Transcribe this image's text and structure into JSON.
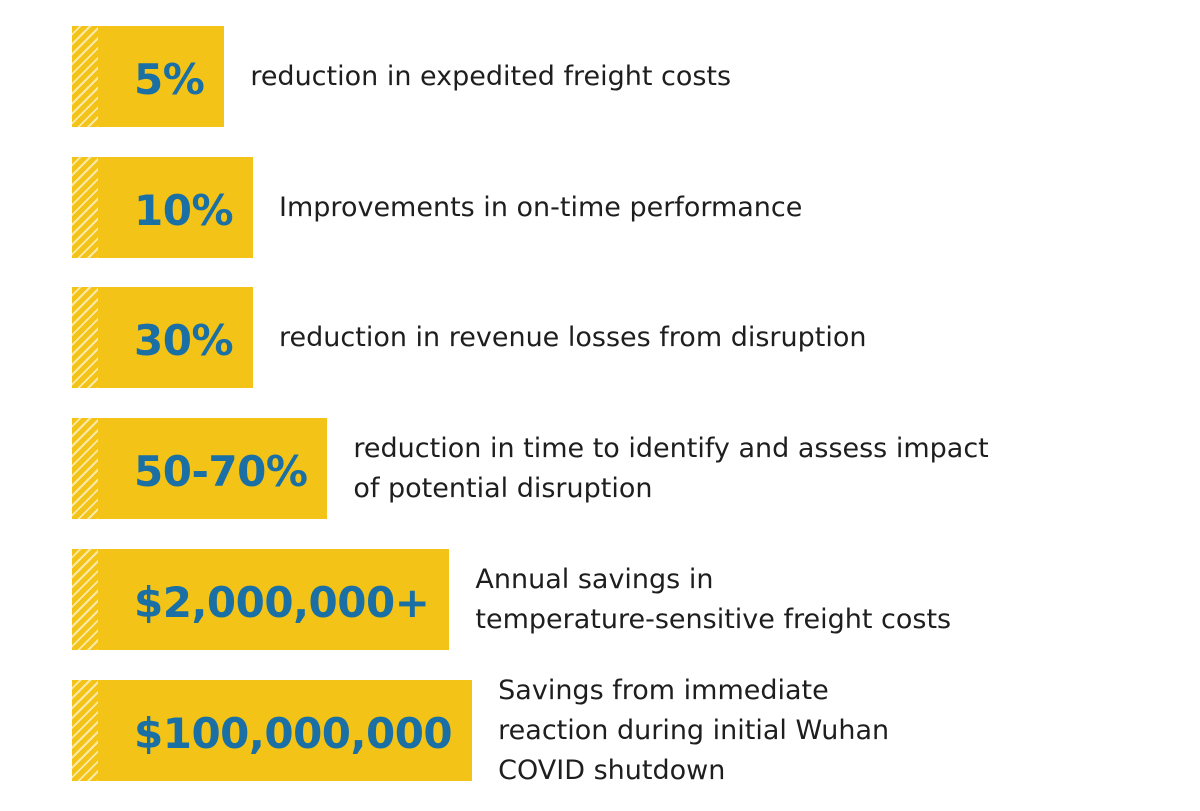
{
  "items": [
    {
      "stat": "5%",
      "lines": [
        "reduction in expedited freight costs"
      ]
    },
    {
      "stat": "10%",
      "lines": [
        "Improvements in on-time performance"
      ]
    },
    {
      "stat": "30%",
      "lines": [
        "reduction in revenue losses from disruption"
      ]
    },
    {
      "stat": "50-70%",
      "lines": [
        "reduction in time to identify and assess impact",
        "of potential disruption"
      ]
    },
    {
      "stat": "$2,000,000+",
      "lines": [
        "Annual savings in",
        "temperature-sensitive freight costs"
      ]
    },
    {
      "stat": "$100,000,000",
      "lines": [
        "Savings from immediate",
        "reaction during initial Wuhan",
        "COVID shutdown"
      ]
    }
  ]
}
